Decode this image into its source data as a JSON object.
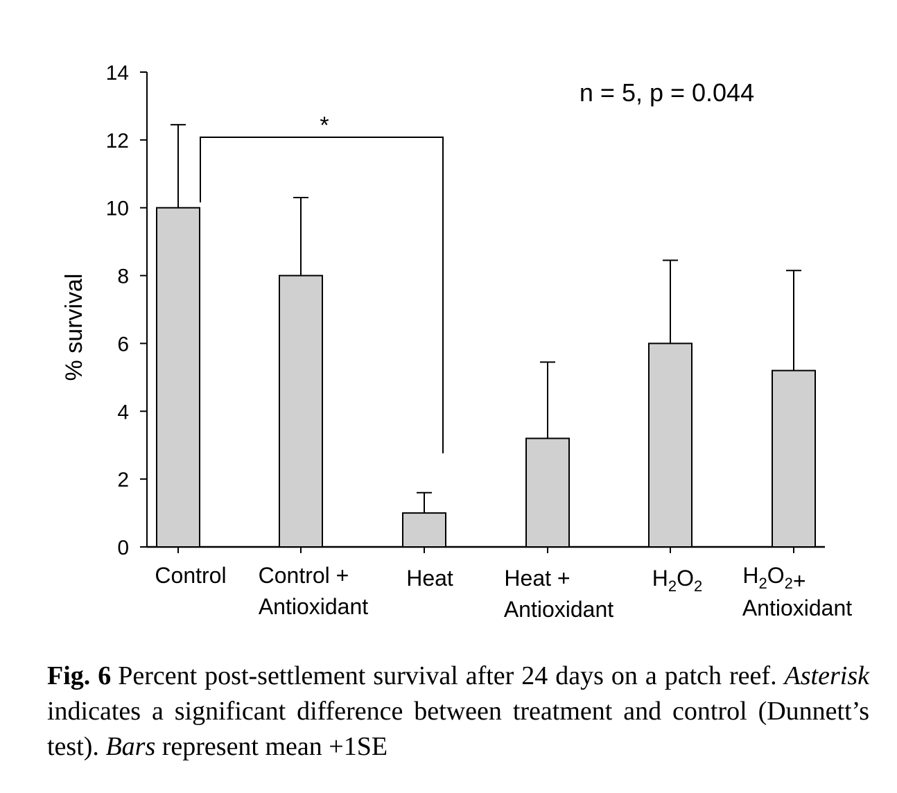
{
  "chart_data": {
    "type": "bar",
    "categories": [
      [
        "Control"
      ],
      [
        "Control +",
        "Antioxidant"
      ],
      [
        "Heat"
      ],
      [
        "Heat +",
        "Antioxidant"
      ],
      [
        "H2O2"
      ],
      [
        "H2O2+",
        "Antioxidant"
      ]
    ],
    "values": [
      10.0,
      8.0,
      1.0,
      3.2,
      6.0,
      5.2
    ],
    "errors_upper": [
      12.45,
      10.3,
      1.6,
      5.45,
      8.45,
      8.15
    ],
    "ylabel": "% survival",
    "ylim": [
      0,
      14
    ],
    "yticks": [
      "0",
      "2",
      "4",
      "6",
      "8",
      "10",
      "12",
      "14"
    ],
    "annotation": "n = 5, p = 0.044",
    "significance": {
      "marker": "*",
      "between": [
        "Control",
        "Heat"
      ]
    },
    "bar_color": "#d0d0d0",
    "grid": false
  },
  "caption": {
    "label": "Fig. 6",
    "text1": "Percent post-settlement survival after 24 days on a patch reef. ",
    "em1": "Asterisk",
    "text2": " indicates a significant difference between treatment and control (Dunnett’s test). ",
    "em2": "Bars",
    "text3": " represent mean +1SE"
  }
}
